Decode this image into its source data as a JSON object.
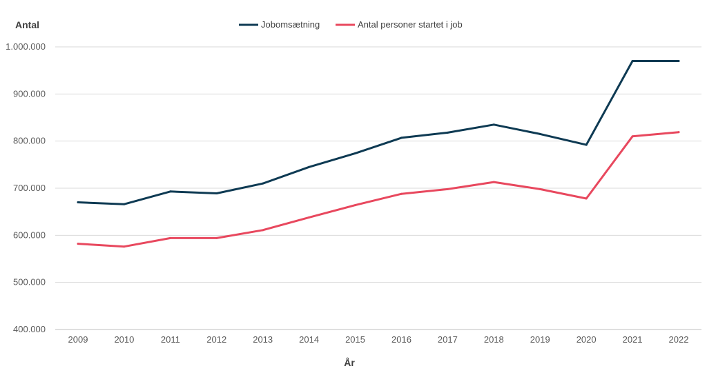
{
  "chart_data": {
    "type": "line",
    "ylabel": "Antal",
    "xlabel": "År",
    "ylim": [
      400000,
      1000000
    ],
    "yticks": [
      400000,
      500000,
      600000,
      700000,
      800000,
      900000,
      1000000
    ],
    "ytick_labels": [
      "400.000",
      "500.000",
      "600.000",
      "700.000",
      "800.000",
      "900.000",
      "1.000.000"
    ],
    "grid": true,
    "legend_position": "top-center",
    "x": [
      "2009",
      "2010",
      "2011",
      "2012",
      "2013",
      "2014",
      "2015",
      "2016",
      "2017",
      "2018",
      "2019",
      "2020",
      "2021",
      "2022"
    ],
    "series": [
      {
        "name": "Jobomsætning",
        "color": "#0e3a53",
        "values": [
          670000,
          666000,
          693000,
          689000,
          710000,
          745000,
          774000,
          807000,
          818000,
          835000,
          815000,
          792000,
          970000,
          970000
        ]
      },
      {
        "name": "Antal personer startet i job",
        "color": "#e8485e",
        "values": [
          582000,
          576000,
          594000,
          594000,
          611000,
          638000,
          664000,
          688000,
          698000,
          713000,
          698000,
          678000,
          810000,
          819000
        ]
      }
    ]
  }
}
